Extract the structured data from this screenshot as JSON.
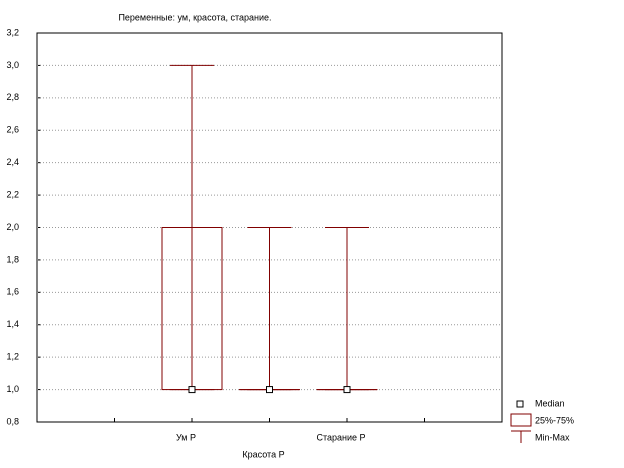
{
  "chart_data": {
    "type": "box",
    "title": "Переменные: ум, красота, старание.",
    "categories": [
      "Ум P",
      "Красота P",
      "Старание P"
    ],
    "boxes": [
      {
        "min": 1,
        "q1": 1,
        "median": 1,
        "q3": 2,
        "max": 3
      },
      {
        "min": 1,
        "q1": 1,
        "median": 1,
        "q3": 1,
        "max": 2
      },
      {
        "min": 1,
        "q1": 1,
        "median": 1,
        "q3": 1,
        "max": 2
      }
    ],
    "color": "#800000",
    "ylim": [
      0.8,
      3.2
    ],
    "yticks": [
      {
        "value": 0.8,
        "label": "0,8"
      },
      {
        "value": 1.0,
        "label": "1,0"
      },
      {
        "value": 1.2,
        "label": "1,2"
      },
      {
        "value": 1.4,
        "label": "1,4"
      },
      {
        "value": 1.6,
        "label": "1,6"
      },
      {
        "value": 1.8,
        "label": "1,8"
      },
      {
        "value": 2.0,
        "label": "2,0"
      },
      {
        "value": 2.2,
        "label": "2,2"
      },
      {
        "value": 2.4,
        "label": "2,4"
      },
      {
        "value": 2.6,
        "label": "2,6"
      },
      {
        "value": 2.8,
        "label": "2,8"
      },
      {
        "value": 3.0,
        "label": "3,0"
      },
      {
        "value": 3.2,
        "label": "3,2"
      }
    ],
    "grid": true,
    "legend": {
      "median": "Median",
      "box": "25%-75%",
      "whisker": "Min-Max"
    }
  }
}
